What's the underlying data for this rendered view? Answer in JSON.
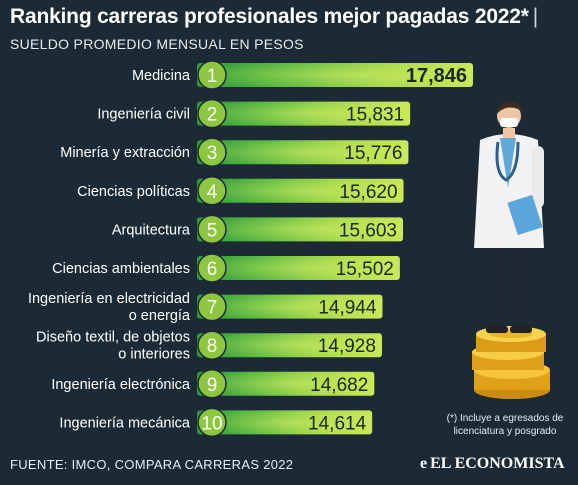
{
  "header": {
    "title": "Ranking carreras profesionales mejor pagadas 2022*",
    "title_bar": "|",
    "subtitle": "SUELDO PROMEDIO MENSUAL EN PESOS"
  },
  "footer": {
    "source": "FUENTE: IMCO, COMPARA CARRERAS 2022",
    "note": "(*) Incluye a egresados de licenciatura y posgrado",
    "brand": "EL ECONOMISTA"
  },
  "colors": {
    "background": "#1b2a35",
    "bar_light": "#b6e04a",
    "bar_dark": "#2f9a3d",
    "rank_circle": "#8dc63f"
  },
  "chart_data": {
    "type": "bar",
    "orientation": "horizontal",
    "title": "Ranking carreras profesionales mejor pagadas 2022*",
    "subtitle": "SUELDO PROMEDIO MENSUAL EN PESOS",
    "categories": [
      [
        "Medicina"
      ],
      [
        "Ingeniería civil"
      ],
      [
        "Minería y extracción"
      ],
      [
        "Ciencias políticas"
      ],
      [
        "Arquitectura"
      ],
      [
        "Ciencias ambientales"
      ],
      [
        "Ingeniería en electricidad",
        "o energía"
      ],
      [
        "Diseño textil, de objetos",
        "o interiores"
      ],
      [
        "Ingeniería electrónica"
      ],
      [
        "Ingeniería mecánica"
      ]
    ],
    "ranks": [
      "1",
      "2",
      "3",
      "4",
      "5",
      "6",
      "7",
      "8",
      "9",
      "10"
    ],
    "values": [
      17846,
      15831,
      15776,
      15620,
      15603,
      15502,
      14944,
      14928,
      14682,
      14614
    ],
    "value_labels": [
      "17,846",
      "15,831",
      "15,776",
      "15,620",
      "15,603",
      "15,502",
      "14,944",
      "14,928",
      "14,682",
      "14,614"
    ],
    "grid": false,
    "legend": "none"
  },
  "icons": {
    "illustration": "doctor-on-coins-icon",
    "brand_mark": "el-economista-logo-icon"
  }
}
